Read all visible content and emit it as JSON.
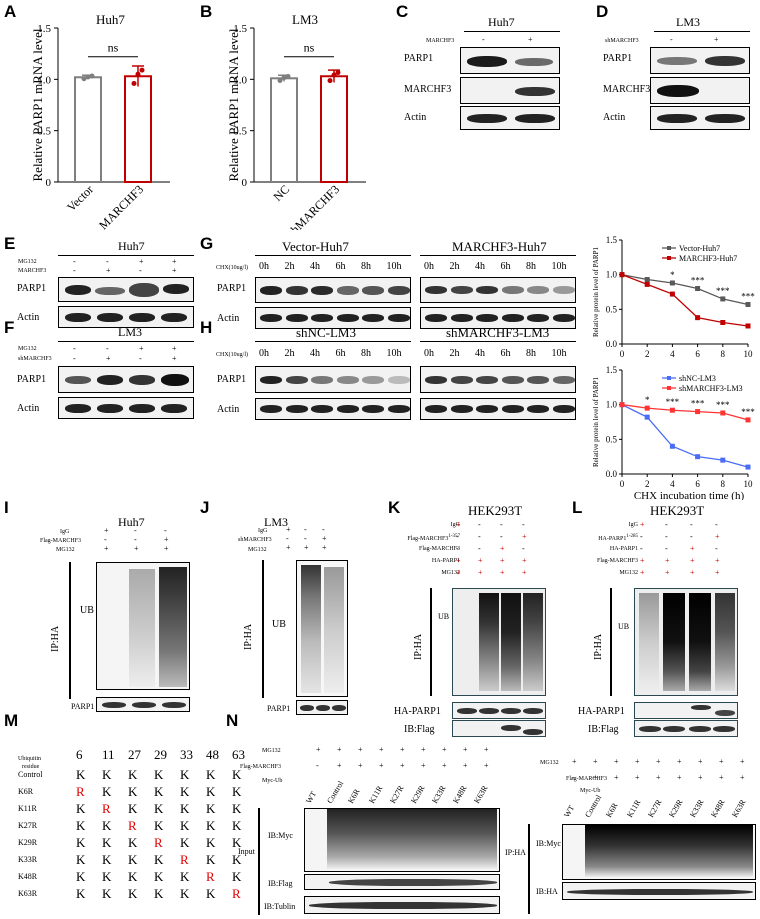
{
  "panel_labels": {
    "A": "A",
    "B": "B",
    "C": "C",
    "D": "D",
    "E": "E",
    "F": "F",
    "G": "G",
    "H": "H",
    "I": "I",
    "J": "J",
    "K": "K",
    "L": "L",
    "M": "M",
    "N": "N"
  },
  "chart_data": [
    {
      "type": "bar",
      "panel": "A",
      "title": "Huh7",
      "ylabel": "Relative PARP1 mRNA level",
      "categories": [
        "Vector",
        "MARCHF3"
      ],
      "values": [
        1.02,
        1.03
      ],
      "errors": [
        0.02,
        0.1
      ],
      "ylim": [
        0,
        1.5
      ],
      "yticks": [
        "0",
        "0.5",
        "1.0",
        "1.5"
      ],
      "annotation": "ns",
      "colors": [
        "#7f7f7f",
        "#c00000"
      ]
    },
    {
      "type": "bar",
      "panel": "B",
      "title": "LM3",
      "ylabel": "Relative PARP1 mRNA level",
      "categories": [
        "NC",
        "shMARCHF3"
      ],
      "values": [
        1.01,
        1.03
      ],
      "errors": [
        0.03,
        0.06
      ],
      "ylim": [
        0,
        1.5
      ],
      "yticks": [
        "0",
        "0.5",
        "1.0",
        "1.5"
      ],
      "annotation": "ns",
      "colors": [
        "#7f7f7f",
        "#c00000"
      ]
    },
    {
      "type": "line",
      "panel": "G",
      "ylabel": "Relative protein level of PARP1",
      "x": [
        0,
        2,
        4,
        6,
        8,
        10
      ],
      "xticks": [
        "0",
        "2",
        "4",
        "6",
        "8",
        "10"
      ],
      "yticks": [
        "0.0",
        "0.5",
        "1.0",
        "1.5"
      ],
      "ylim": [
        0,
        1.5
      ],
      "series": [
        {
          "name": "Vector-Huh7",
          "values": [
            1.0,
            0.93,
            0.88,
            0.8,
            0.65,
            0.57
          ],
          "color": "#595959"
        },
        {
          "name": "MARCHF3-Huh7",
          "values": [
            1.0,
            0.86,
            0.72,
            0.38,
            0.31,
            0.26
          ],
          "color": "#c00000"
        }
      ],
      "sig": [
        "",
        "",
        "*",
        "***",
        "***",
        "***"
      ]
    },
    {
      "type": "line",
      "panel": "H",
      "ylabel": "Relative protein level of PARP1",
      "xlabel": "CHX incubation time (h)",
      "x": [
        0,
        2,
        4,
        6,
        8,
        10
      ],
      "xticks": [
        "0",
        "2",
        "4",
        "6",
        "8",
        "10"
      ],
      "yticks": [
        "0.0",
        "0.5",
        "1.0",
        "1.5"
      ],
      "ylim": [
        0,
        1.5
      ],
      "series": [
        {
          "name": "shNC-LM3",
          "values": [
            1.0,
            0.82,
            0.4,
            0.25,
            0.2,
            0.1
          ],
          "color": "#4a6cf7"
        },
        {
          "name": "shMARCHF3-LM3",
          "values": [
            1.0,
            0.95,
            0.92,
            0.9,
            0.88,
            0.78
          ],
          "color": "#ff3333"
        }
      ],
      "sig": [
        "",
        "*",
        "***",
        "***",
        "***",
        "***"
      ]
    }
  ],
  "C": {
    "title": "Huh7",
    "treat": "MARCHF3",
    "signs": [
      "-",
      "+"
    ],
    "rows": [
      "PARP1",
      "MARCHF3",
      "Actin"
    ]
  },
  "D": {
    "title": "LM3",
    "treat": "shMARCHF3",
    "signs": [
      "-",
      "+"
    ],
    "rows": [
      "PARP1",
      "MARCHF3",
      "Actin"
    ]
  },
  "E": {
    "title": "Huh7",
    "treats": [
      {
        "name": "MG132",
        "signs": [
          "-",
          "-",
          "+",
          "+"
        ]
      },
      {
        "name": "MARCHF3",
        "signs": [
          "-",
          "+",
          "-",
          "+"
        ]
      }
    ],
    "rows": [
      "PARP1",
      "Actin"
    ]
  },
  "F": {
    "title": "LM3",
    "treats": [
      {
        "name": "MG132",
        "signs": [
          "-",
          "-",
          "+",
          "+"
        ]
      },
      {
        "name": "shMARCHF3",
        "signs": [
          "-",
          "+",
          "-",
          "+"
        ]
      }
    ],
    "rows": [
      "PARP1",
      "Actin"
    ]
  },
  "G": {
    "chx": "CHX(10ug/l)",
    "group1": "Vector-Huh7",
    "group2": "MARCHF3-Huh7",
    "times": [
      "0h",
      "2h",
      "4h",
      "6h",
      "8h",
      "10h"
    ],
    "rows": [
      "PARP1",
      "Actin"
    ]
  },
  "H": {
    "chx": "CHX(10ug/l)",
    "group1": "shNC-LM3",
    "group2": "shMARCHF3-LM3",
    "times": [
      "0h",
      "2h",
      "4h",
      "6h",
      "8h",
      "10h"
    ],
    "rows": [
      "PARP1",
      "Actin"
    ]
  },
  "I": {
    "title": "Huh7",
    "treats": [
      {
        "name": "IgG",
        "signs": [
          "+",
          "-",
          "-"
        ]
      },
      {
        "name": "Flag-MARCHF3",
        "signs": [
          "-",
          "-",
          "+"
        ]
      },
      {
        "name": "MG132",
        "signs": [
          "+",
          "+",
          "+"
        ]
      }
    ],
    "ip": "IP:HA",
    "ub": "UB",
    "row": "PARP1"
  },
  "J": {
    "title": "LM3",
    "treats": [
      {
        "name": "IgG",
        "signs": [
          "+",
          "-",
          "-"
        ]
      },
      {
        "name": "shMARCHF3",
        "signs": [
          "-",
          "-",
          "+"
        ]
      },
      {
        "name": "MG132",
        "signs": [
          "+",
          "+",
          "+"
        ]
      }
    ],
    "ip": "IP:HA",
    "ub": "UB",
    "row": "PARP1"
  },
  "K": {
    "title": "HEK293T",
    "treats": [
      {
        "name": "IgG",
        "signs": [
          "+",
          "-",
          "-",
          "-"
        ]
      },
      {
        "name": "Flag-MARCHF3",
        "sup": "1-357",
        "signs": [
          "-",
          "-",
          "-",
          "+"
        ]
      },
      {
        "name": "Flag-MARCHF3",
        "sup": "",
        "signs": [
          "-",
          "-",
          "+",
          "-"
        ]
      },
      {
        "name": "HA-PARP1",
        "sup": "",
        "signs": [
          "+",
          "+",
          "+",
          "+"
        ]
      },
      {
        "name": "MG132",
        "sup": "",
        "signs": [
          "+",
          "+",
          "+",
          "+"
        ]
      }
    ],
    "ip": "IP:HA",
    "ub": "UB",
    "rows": [
      "HA-PARP1",
      "IB:Flag"
    ]
  },
  "L": {
    "title": "HEK293T",
    "treats": [
      {
        "name": "IgG",
        "sup": "",
        "signs": [
          "+",
          "-",
          "-",
          "-"
        ]
      },
      {
        "name": "HA-PARP1",
        "sup": "1-285",
        "signs": [
          "-",
          "-",
          "-",
          "+"
        ]
      },
      {
        "name": "HA-PARP1",
        "sup": "",
        "signs": [
          "-",
          "-",
          "+",
          "-"
        ]
      },
      {
        "name": "Flag-MARCHF3",
        "sup": "",
        "signs": [
          "+",
          "+",
          "+",
          "+"
        ]
      },
      {
        "name": "MG132",
        "sup": "",
        "signs": [
          "+",
          "+",
          "+",
          "+"
        ]
      }
    ],
    "ip": "IP:HA",
    "ub": "UB",
    "rows": [
      "HA-PARP1",
      "IB:Flag"
    ]
  },
  "M": {
    "header1": "Ubiquitin",
    "header2": "residue",
    "positions": [
      "6",
      "11",
      "27",
      "29",
      "33",
      "48",
      "63"
    ],
    "rows": [
      {
        "name": "Control",
        "mut": -1
      },
      {
        "name": "K6R",
        "mut": 0
      },
      {
        "name": "K11R",
        "mut": 1
      },
      {
        "name": "K27R",
        "mut": 2
      },
      {
        "name": "K29R",
        "mut": 3
      },
      {
        "name": "K33R",
        "mut": 4
      },
      {
        "name": "K48R",
        "mut": 5
      },
      {
        "name": "K63R",
        "mut": 6
      }
    ],
    "K": "K",
    "R": "R"
  },
  "N": {
    "treats": [
      {
        "name": "MG132",
        "signs": [
          "+",
          "+",
          "+",
          "+",
          "+",
          "+",
          "+",
          "+",
          "+"
        ]
      },
      {
        "name": "Flag-MARCHF3",
        "signs": [
          "-",
          "+",
          "+",
          "+",
          "+",
          "+",
          "+",
          "+",
          "+"
        ]
      },
      {
        "name": "Myc-Ub",
        "signs": []
      }
    ],
    "lanes": [
      "WT",
      "Control",
      "K6R",
      "K11R",
      "K27R",
      "K29R",
      "K33R",
      "K48R",
      "K63R"
    ],
    "input": "Input",
    "iphA": "IP:HA",
    "left_rows": [
      "IB:Myc",
      "IB:Flag",
      "IB:Tublin"
    ],
    "right_rows": [
      "IB:Myc",
      "IB:HA"
    ]
  },
  "colors": {
    "red": "#c00000",
    "gray": "#7f7f7f",
    "blue": "#4a6cf7",
    "lightred": "#ff3333"
  }
}
